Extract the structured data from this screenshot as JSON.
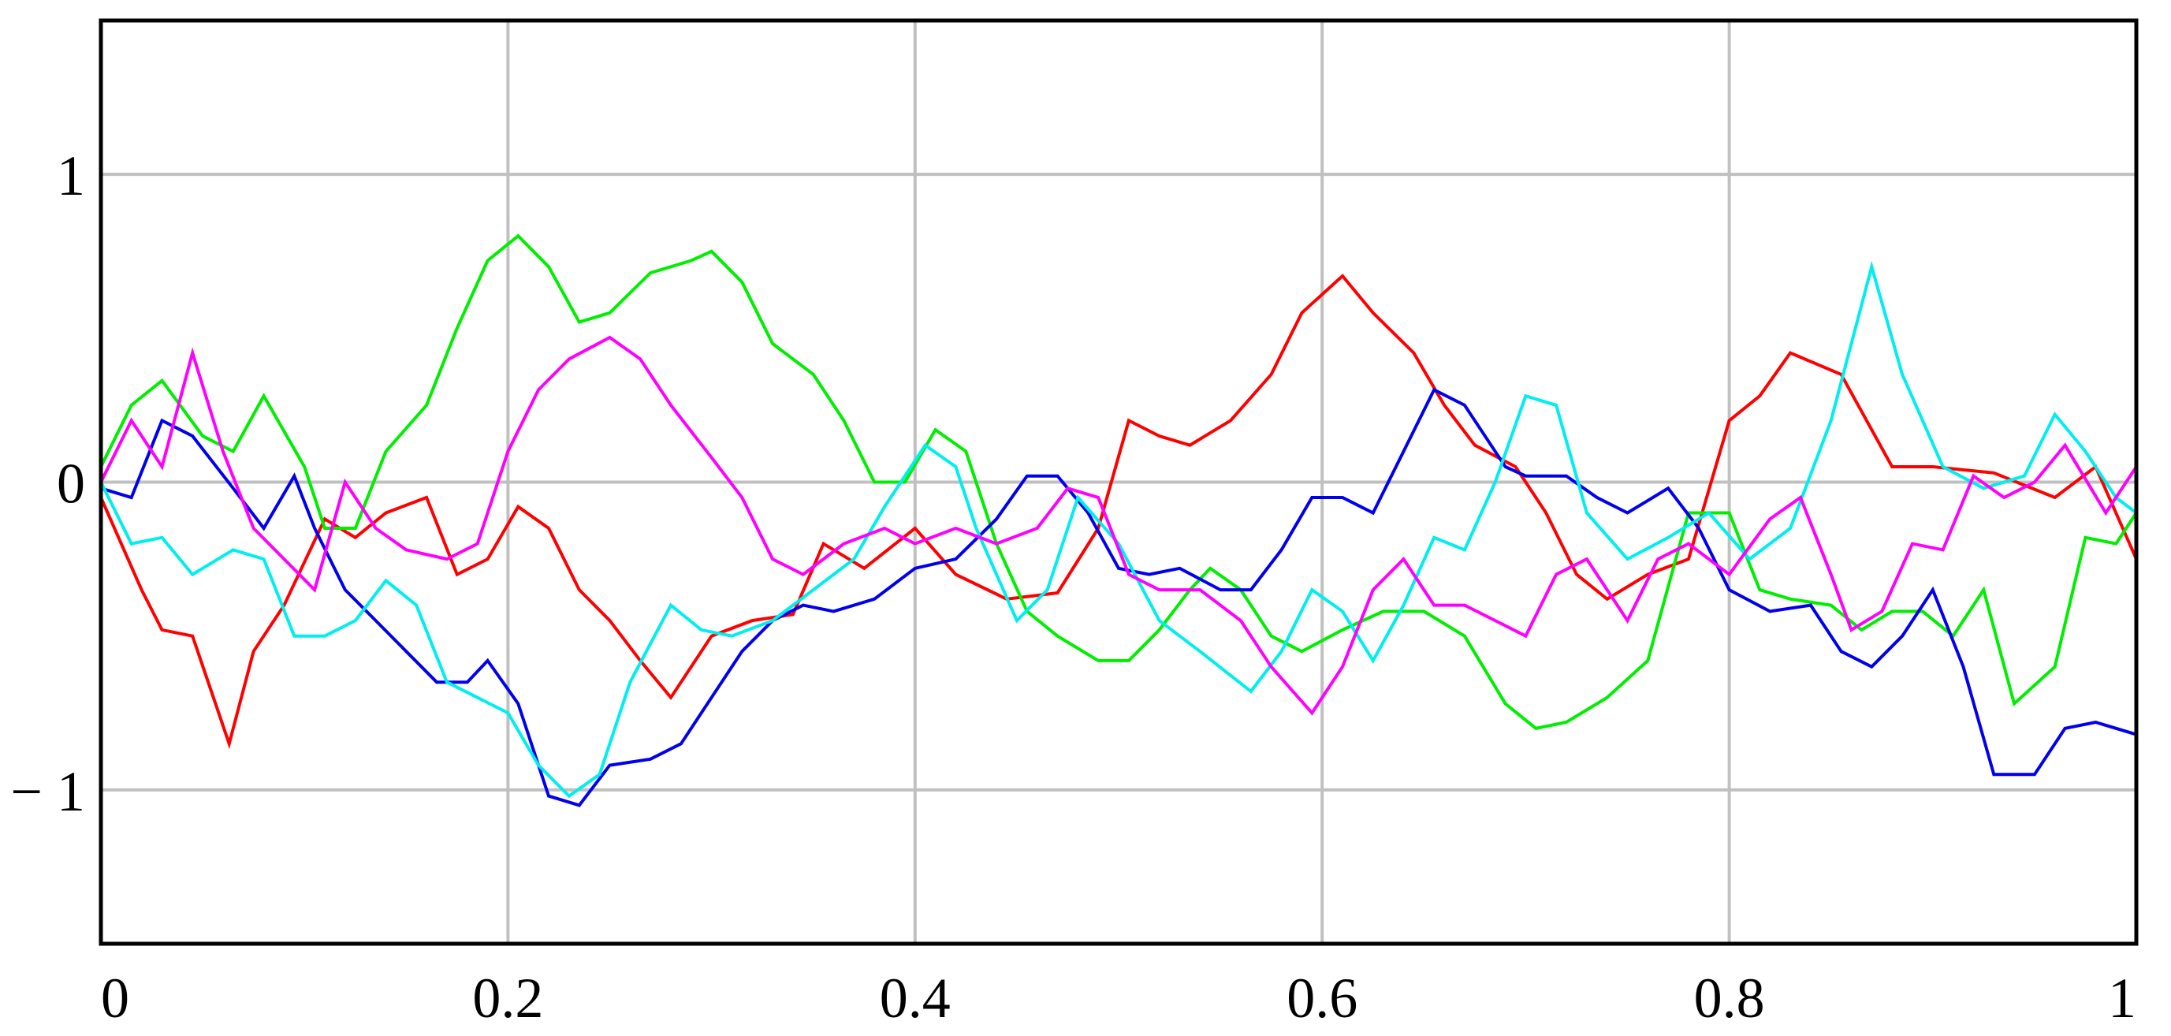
{
  "chart_data": {
    "type": "line",
    "title": "",
    "xlabel": "",
    "ylabel": "",
    "xlim": [
      0,
      1
    ],
    "ylim": [
      -1.5,
      1.5
    ],
    "grid": true,
    "legend": "none",
    "x_ticks": [
      0,
      0.2,
      0.4,
      0.6,
      0.8,
      1
    ],
    "x_tick_labels": [
      "0",
      "0.2",
      "0.4",
      "0.6",
      "0.8",
      "1"
    ],
    "y_ticks": [
      -1,
      0,
      1
    ],
    "y_tick_labels": [
      "− 1",
      "0",
      "1"
    ],
    "series": [
      {
        "color": "#ff0000",
        "points": [
          [
            0,
            -0.05
          ],
          [
            0.02,
            -0.35
          ],
          [
            0.03,
            -0.48
          ],
          [
            0.045,
            -0.5
          ],
          [
            0.063,
            -0.85
          ],
          [
            0.075,
            -0.55
          ],
          [
            0.09,
            -0.4
          ],
          [
            0.11,
            -0.12
          ],
          [
            0.125,
            -0.18
          ],
          [
            0.14,
            -0.1
          ],
          [
            0.16,
            -0.05
          ],
          [
            0.175,
            -0.3
          ],
          [
            0.19,
            -0.25
          ],
          [
            0.205,
            -0.08
          ],
          [
            0.22,
            -0.15
          ],
          [
            0.235,
            -0.35
          ],
          [
            0.25,
            -0.45
          ],
          [
            0.265,
            -0.58
          ],
          [
            0.28,
            -0.7
          ],
          [
            0.3,
            -0.5
          ],
          [
            0.32,
            -0.45
          ],
          [
            0.34,
            -0.43
          ],
          [
            0.355,
            -0.2
          ],
          [
            0.375,
            -0.28
          ],
          [
            0.4,
            -0.15
          ],
          [
            0.42,
            -0.3
          ],
          [
            0.445,
            -0.38
          ],
          [
            0.47,
            -0.36
          ],
          [
            0.49,
            -0.15
          ],
          [
            0.505,
            0.2
          ],
          [
            0.52,
            0.15
          ],
          [
            0.535,
            0.12
          ],
          [
            0.555,
            0.2
          ],
          [
            0.575,
            0.35
          ],
          [
            0.59,
            0.55
          ],
          [
            0.61,
            0.67
          ],
          [
            0.625,
            0.55
          ],
          [
            0.645,
            0.42
          ],
          [
            0.66,
            0.25
          ],
          [
            0.675,
            0.12
          ],
          [
            0.695,
            0.05
          ],
          [
            0.71,
            -0.1
          ],
          [
            0.725,
            -0.3
          ],
          [
            0.74,
            -0.38
          ],
          [
            0.76,
            -0.3
          ],
          [
            0.78,
            -0.25
          ],
          [
            0.8,
            0.2
          ],
          [
            0.815,
            0.28
          ],
          [
            0.83,
            0.42
          ],
          [
            0.855,
            0.35
          ],
          [
            0.88,
            0.05
          ],
          [
            0.9,
            0.05
          ],
          [
            0.93,
            0.03
          ],
          [
            0.96,
            -0.05
          ],
          [
            0.98,
            0.05
          ],
          [
            1,
            -0.25
          ]
        ]
      },
      {
        "color": "#00ee00",
        "points": [
          [
            0,
            0.05
          ],
          [
            0.015,
            0.25
          ],
          [
            0.03,
            0.33
          ],
          [
            0.05,
            0.15
          ],
          [
            0.065,
            0.1
          ],
          [
            0.08,
            0.28
          ],
          [
            0.1,
            0.05
          ],
          [
            0.11,
            -0.15
          ],
          [
            0.125,
            -0.15
          ],
          [
            0.14,
            0.1
          ],
          [
            0.16,
            0.25
          ],
          [
            0.175,
            0.5
          ],
          [
            0.19,
            0.72
          ],
          [
            0.205,
            0.8
          ],
          [
            0.22,
            0.7
          ],
          [
            0.235,
            0.52
          ],
          [
            0.25,
            0.55
          ],
          [
            0.27,
            0.68
          ],
          [
            0.29,
            0.72
          ],
          [
            0.3,
            0.75
          ],
          [
            0.315,
            0.65
          ],
          [
            0.33,
            0.45
          ],
          [
            0.35,
            0.35
          ],
          [
            0.365,
            0.2
          ],
          [
            0.38,
            0.0
          ],
          [
            0.395,
            0.0
          ],
          [
            0.41,
            0.17
          ],
          [
            0.425,
            0.1
          ],
          [
            0.44,
            -0.2
          ],
          [
            0.455,
            -0.42
          ],
          [
            0.47,
            -0.5
          ],
          [
            0.49,
            -0.58
          ],
          [
            0.505,
            -0.58
          ],
          [
            0.52,
            -0.48
          ],
          [
            0.535,
            -0.35
          ],
          [
            0.545,
            -0.28
          ],
          [
            0.56,
            -0.35
          ],
          [
            0.575,
            -0.5
          ],
          [
            0.59,
            -0.55
          ],
          [
            0.61,
            -0.48
          ],
          [
            0.63,
            -0.42
          ],
          [
            0.65,
            -0.42
          ],
          [
            0.67,
            -0.5
          ],
          [
            0.69,
            -0.72
          ],
          [
            0.705,
            -0.8
          ],
          [
            0.72,
            -0.78
          ],
          [
            0.74,
            -0.7
          ],
          [
            0.76,
            -0.58
          ],
          [
            0.78,
            -0.1
          ],
          [
            0.8,
            -0.1
          ],
          [
            0.815,
            -0.35
          ],
          [
            0.83,
            -0.38
          ],
          [
            0.85,
            -0.4
          ],
          [
            0.865,
            -0.48
          ],
          [
            0.88,
            -0.42
          ],
          [
            0.895,
            -0.42
          ],
          [
            0.91,
            -0.5
          ],
          [
            0.925,
            -0.35
          ],
          [
            0.94,
            -0.72
          ],
          [
            0.96,
            -0.6
          ],
          [
            0.975,
            -0.18
          ],
          [
            0.99,
            -0.2
          ],
          [
            1,
            -0.1
          ]
        ]
      },
      {
        "color": "#0000ee",
        "points": [
          [
            0,
            -0.02
          ],
          [
            0.015,
            -0.05
          ],
          [
            0.03,
            0.2
          ],
          [
            0.045,
            0.15
          ],
          [
            0.065,
            -0.02
          ],
          [
            0.08,
            -0.15
          ],
          [
            0.095,
            0.02
          ],
          [
            0.105,
            -0.15
          ],
          [
            0.12,
            -0.35
          ],
          [
            0.135,
            -0.45
          ],
          [
            0.15,
            -0.55
          ],
          [
            0.165,
            -0.65
          ],
          [
            0.18,
            -0.65
          ],
          [
            0.19,
            -0.58
          ],
          [
            0.205,
            -0.72
          ],
          [
            0.22,
            -1.02
          ],
          [
            0.235,
            -1.05
          ],
          [
            0.25,
            -0.92
          ],
          [
            0.27,
            -0.9
          ],
          [
            0.285,
            -0.85
          ],
          [
            0.3,
            -0.7
          ],
          [
            0.315,
            -0.55
          ],
          [
            0.33,
            -0.45
          ],
          [
            0.345,
            -0.4
          ],
          [
            0.36,
            -0.42
          ],
          [
            0.38,
            -0.38
          ],
          [
            0.4,
            -0.28
          ],
          [
            0.42,
            -0.25
          ],
          [
            0.44,
            -0.12
          ],
          [
            0.455,
            0.02
          ],
          [
            0.47,
            0.02
          ],
          [
            0.485,
            -0.1
          ],
          [
            0.5,
            -0.28
          ],
          [
            0.515,
            -0.3
          ],
          [
            0.53,
            -0.28
          ],
          [
            0.55,
            -0.35
          ],
          [
            0.565,
            -0.35
          ],
          [
            0.58,
            -0.22
          ],
          [
            0.595,
            -0.05
          ],
          [
            0.61,
            -0.05
          ],
          [
            0.625,
            -0.1
          ],
          [
            0.64,
            0.1
          ],
          [
            0.655,
            0.3
          ],
          [
            0.67,
            0.25
          ],
          [
            0.69,
            0.05
          ],
          [
            0.7,
            0.02
          ],
          [
            0.72,
            0.02
          ],
          [
            0.735,
            -0.05
          ],
          [
            0.75,
            -0.1
          ],
          [
            0.77,
            -0.02
          ],
          [
            0.785,
            -0.15
          ],
          [
            0.8,
            -0.35
          ],
          [
            0.82,
            -0.42
          ],
          [
            0.84,
            -0.4
          ],
          [
            0.855,
            -0.55
          ],
          [
            0.87,
            -0.6
          ],
          [
            0.885,
            -0.5
          ],
          [
            0.9,
            -0.35
          ],
          [
            0.915,
            -0.6
          ],
          [
            0.93,
            -0.95
          ],
          [
            0.95,
            -0.95
          ],
          [
            0.965,
            -0.8
          ],
          [
            0.98,
            -0.78
          ],
          [
            1,
            -0.82
          ]
        ]
      },
      {
        "color": "#00eeee",
        "points": [
          [
            0,
            0.0
          ],
          [
            0.015,
            -0.2
          ],
          [
            0.03,
            -0.18
          ],
          [
            0.045,
            -0.3
          ],
          [
            0.065,
            -0.22
          ],
          [
            0.08,
            -0.25
          ],
          [
            0.095,
            -0.5
          ],
          [
            0.11,
            -0.5
          ],
          [
            0.125,
            -0.45
          ],
          [
            0.14,
            -0.32
          ],
          [
            0.155,
            -0.4
          ],
          [
            0.17,
            -0.65
          ],
          [
            0.185,
            -0.7
          ],
          [
            0.2,
            -0.75
          ],
          [
            0.215,
            -0.92
          ],
          [
            0.23,
            -1.02
          ],
          [
            0.245,
            -0.95
          ],
          [
            0.26,
            -0.65
          ],
          [
            0.28,
            -0.4
          ],
          [
            0.295,
            -0.48
          ],
          [
            0.31,
            -0.5
          ],
          [
            0.33,
            -0.45
          ],
          [
            0.35,
            -0.35
          ],
          [
            0.37,
            -0.25
          ],
          [
            0.385,
            -0.08
          ],
          [
            0.405,
            0.12
          ],
          [
            0.42,
            0.05
          ],
          [
            0.43,
            -0.15
          ],
          [
            0.45,
            -0.45
          ],
          [
            0.465,
            -0.35
          ],
          [
            0.48,
            -0.05
          ],
          [
            0.5,
            -0.2
          ],
          [
            0.52,
            -0.45
          ],
          [
            0.54,
            -0.55
          ],
          [
            0.565,
            -0.68
          ],
          [
            0.58,
            -0.55
          ],
          [
            0.595,
            -0.35
          ],
          [
            0.61,
            -0.42
          ],
          [
            0.625,
            -0.58
          ],
          [
            0.64,
            -0.4
          ],
          [
            0.655,
            -0.18
          ],
          [
            0.67,
            -0.22
          ],
          [
            0.685,
            0.0
          ],
          [
            0.7,
            0.28
          ],
          [
            0.715,
            0.25
          ],
          [
            0.73,
            -0.1
          ],
          [
            0.75,
            -0.25
          ],
          [
            0.77,
            -0.18
          ],
          [
            0.79,
            -0.1
          ],
          [
            0.81,
            -0.25
          ],
          [
            0.83,
            -0.15
          ],
          [
            0.85,
            0.2
          ],
          [
            0.87,
            0.7
          ],
          [
            0.885,
            0.35
          ],
          [
            0.905,
            0.05
          ],
          [
            0.925,
            -0.02
          ],
          [
            0.945,
            0.02
          ],
          [
            0.96,
            0.22
          ],
          [
            0.975,
            0.1
          ],
          [
            0.99,
            -0.05
          ],
          [
            1,
            -0.1
          ]
        ]
      },
      {
        "color": "#ff00ff",
        "points": [
          [
            0,
            0.0
          ],
          [
            0.015,
            0.2
          ],
          [
            0.03,
            0.05
          ],
          [
            0.045,
            0.42
          ],
          [
            0.06,
            0.1
          ],
          [
            0.075,
            -0.15
          ],
          [
            0.09,
            -0.25
          ],
          [
            0.105,
            -0.35
          ],
          [
            0.12,
            0.0
          ],
          [
            0.135,
            -0.15
          ],
          [
            0.15,
            -0.22
          ],
          [
            0.17,
            -0.25
          ],
          [
            0.185,
            -0.2
          ],
          [
            0.2,
            0.1
          ],
          [
            0.215,
            0.3
          ],
          [
            0.23,
            0.4
          ],
          [
            0.25,
            0.47
          ],
          [
            0.265,
            0.4
          ],
          [
            0.28,
            0.25
          ],
          [
            0.3,
            0.08
          ],
          [
            0.315,
            -0.05
          ],
          [
            0.33,
            -0.25
          ],
          [
            0.345,
            -0.3
          ],
          [
            0.365,
            -0.2
          ],
          [
            0.385,
            -0.15
          ],
          [
            0.4,
            -0.2
          ],
          [
            0.42,
            -0.15
          ],
          [
            0.44,
            -0.2
          ],
          [
            0.46,
            -0.15
          ],
          [
            0.475,
            -0.02
          ],
          [
            0.49,
            -0.05
          ],
          [
            0.505,
            -0.3
          ],
          [
            0.52,
            -0.35
          ],
          [
            0.54,
            -0.35
          ],
          [
            0.56,
            -0.45
          ],
          [
            0.575,
            -0.6
          ],
          [
            0.595,
            -0.75
          ],
          [
            0.61,
            -0.6
          ],
          [
            0.625,
            -0.35
          ],
          [
            0.64,
            -0.25
          ],
          [
            0.655,
            -0.4
          ],
          [
            0.67,
            -0.4
          ],
          [
            0.685,
            -0.45
          ],
          [
            0.7,
            -0.5
          ],
          [
            0.715,
            -0.3
          ],
          [
            0.73,
            -0.25
          ],
          [
            0.75,
            -0.45
          ],
          [
            0.765,
            -0.25
          ],
          [
            0.78,
            -0.2
          ],
          [
            0.8,
            -0.3
          ],
          [
            0.82,
            -0.12
          ],
          [
            0.835,
            -0.05
          ],
          [
            0.85,
            -0.3
          ],
          [
            0.86,
            -0.48
          ],
          [
            0.875,
            -0.42
          ],
          [
            0.89,
            -0.2
          ],
          [
            0.905,
            -0.22
          ],
          [
            0.92,
            0.02
          ],
          [
            0.935,
            -0.05
          ],
          [
            0.95,
            0.0
          ],
          [
            0.965,
            0.12
          ],
          [
            0.985,
            -0.1
          ],
          [
            1,
            0.05
          ]
        ]
      }
    ]
  }
}
